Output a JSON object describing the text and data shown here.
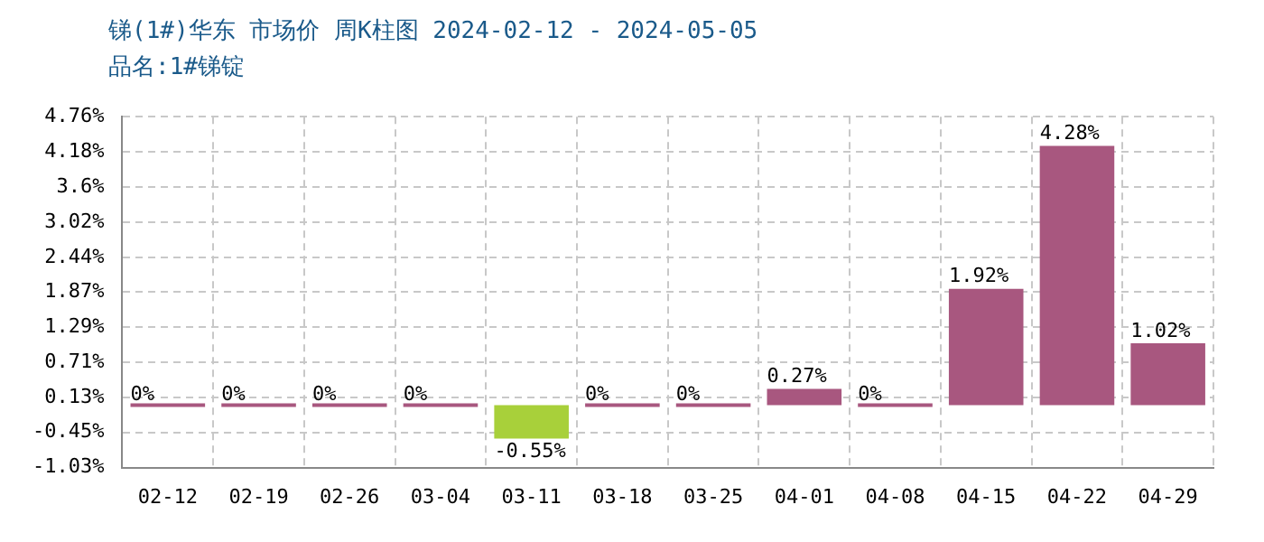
{
  "chart_data": {
    "type": "bar",
    "title": "锑(1#)华东 市场价 周K柱图 2024-02-12 - 2024-05-05",
    "subtitle": "品名:1#锑锭",
    "categories": [
      "02-12",
      "02-19",
      "02-26",
      "03-04",
      "03-11",
      "03-18",
      "03-25",
      "04-01",
      "04-08",
      "04-15",
      "04-22",
      "04-29"
    ],
    "values": [
      0,
      0,
      0,
      0,
      -0.55,
      0,
      0,
      0.27,
      0,
      1.92,
      4.28,
      1.02
    ],
    "colors": [
      "#a8577f",
      "#a8577f",
      "#a8577f",
      "#a8577f",
      "#a8d03a",
      "#a8577f",
      "#a8577f",
      "#a8577f",
      "#a8577f",
      "#a8577f",
      "#a8577f",
      "#a8577f"
    ],
    "value_labels": [
      "0%",
      "0%",
      "0%",
      "0%",
      "-0.55%",
      "0%",
      "0%",
      "0.27%",
      "0%",
      "1.92%",
      "4.28%",
      "1.02%"
    ],
    "ylim": [
      -1.03,
      4.76
    ],
    "yticks": [
      {
        "value": -1.03,
        "label": "-1.03%"
      },
      {
        "value": -0.45,
        "label": "-0.45%"
      },
      {
        "value": 0.13,
        "label": "0.13%"
      },
      {
        "value": 0.71,
        "label": "0.71%"
      },
      {
        "value": 1.29,
        "label": "1.29%"
      },
      {
        "value": 1.87,
        "label": "1.87%"
      },
      {
        "value": 2.44,
        "label": "2.44%"
      },
      {
        "value": 3.02,
        "label": "3.02%"
      },
      {
        "value": 3.6,
        "label": "3.6%"
      },
      {
        "value": 4.18,
        "label": "4.18%"
      },
      {
        "value": 4.76,
        "label": "4.76%"
      }
    ],
    "grid": true
  }
}
